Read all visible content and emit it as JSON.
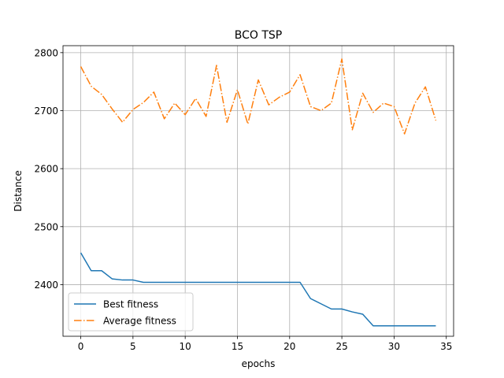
{
  "chart_data": {
    "type": "line",
    "title": "BCO TSP",
    "xlabel": "epochs",
    "ylabel": "Distance",
    "xlim": [
      -1.7,
      35.7
    ],
    "ylim": [
      2311,
      2812
    ],
    "xticks": [
      0,
      5,
      10,
      15,
      20,
      25,
      30,
      35
    ],
    "yticks": [
      2400,
      2500,
      2600,
      2700,
      2800
    ],
    "grid": true,
    "legend_position": "lower-left",
    "x": [
      0,
      1,
      2,
      3,
      4,
      5,
      6,
      7,
      8,
      9,
      10,
      11,
      12,
      13,
      14,
      15,
      16,
      17,
      18,
      19,
      20,
      21,
      22,
      23,
      24,
      25,
      26,
      27,
      28,
      29,
      30,
      31,
      32,
      33,
      34
    ],
    "series": [
      {
        "name": "Best fitness",
        "color": "#1f77b4",
        "style": "solid",
        "values": [
          2455,
          2424,
          2424,
          2410,
          2408,
          2408,
          2404,
          2404,
          2404,
          2404,
          2404,
          2404,
          2404,
          2404,
          2404,
          2404,
          2404,
          2404,
          2404,
          2404,
          2404,
          2404,
          2376,
          2367,
          2358,
          2358,
          2353,
          2349,
          2329,
          2329,
          2329,
          2329,
          2329,
          2329,
          2329
        ]
      },
      {
        "name": "Average fitness",
        "color": "#ff7f0e",
        "style": "dashdot",
        "values": [
          2776,
          2742,
          2728,
          2703,
          2680,
          2702,
          2714,
          2732,
          2686,
          2713,
          2693,
          2721,
          2690,
          2778,
          2680,
          2736,
          2677,
          2753,
          2710,
          2723,
          2732,
          2762,
          2707,
          2700,
          2713,
          2789,
          2667,
          2730,
          2697,
          2713,
          2707,
          2660,
          2713,
          2741,
          2683
        ]
      }
    ]
  }
}
